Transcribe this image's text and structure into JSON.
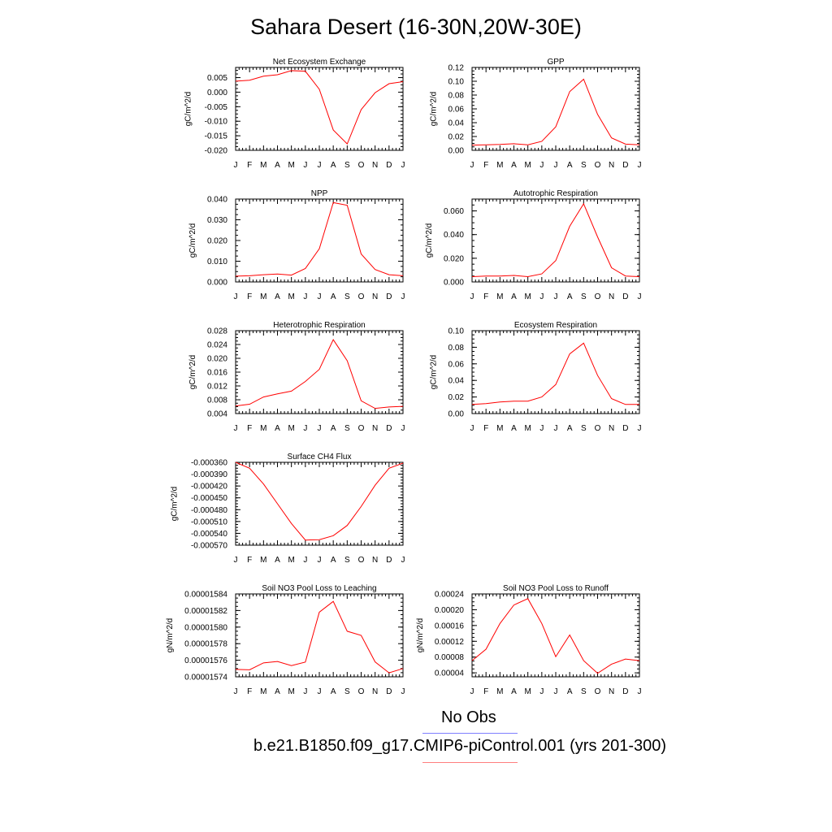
{
  "title": "Sahara Desert (16-30N,20W-30E)",
  "legend": {
    "obs_label": "No Obs",
    "obs_color": "#7f7fff",
    "model_label": "b.e21.B1850.f09_g17.CMIP6-piControl.001 (yrs 201-300)",
    "model_color": "#ff7f7f"
  },
  "chart_data": [
    {
      "type": "line",
      "title": "Net Ecosystem Exchange",
      "ylabel": "gC/m^2/d",
      "x": [
        "J",
        "F",
        "M",
        "A",
        "M",
        "J",
        "J",
        "A",
        "S",
        "O",
        "N",
        "D",
        "J"
      ],
      "ylim": [
        -0.02,
        0.0085
      ],
      "yticks": [
        "0.005",
        "0.000",
        "-0.005",
        "-0.010",
        "-0.015",
        "-0.020"
      ],
      "ytick_values": [
        0.005,
        0,
        -0.005,
        -0.01,
        -0.015,
        -0.02
      ],
      "series": [
        {
          "color": "#ff0000",
          "values": [
            0.0038,
            0.0041,
            0.0055,
            0.006,
            0.0074,
            0.0072,
            0.001,
            -0.013,
            -0.0178,
            -0.006,
            -0.0002,
            0.0029,
            0.0036
          ]
        }
      ]
    },
    {
      "type": "line",
      "title": "GPP",
      "ylabel": "gC/m^2/d",
      "x": [
        "J",
        "F",
        "M",
        "A",
        "M",
        "J",
        "J",
        "A",
        "S",
        "O",
        "N",
        "D",
        "J"
      ],
      "ylim": [
        0,
        0.12
      ],
      "yticks": [
        "0.12",
        "0.10",
        "0.08",
        "0.06",
        "0.04",
        "0.02",
        "0.00"
      ],
      "ytick_values": [
        0.12,
        0.1,
        0.08,
        0.06,
        0.04,
        0.02,
        0
      ],
      "series": [
        {
          "color": "#ff0000",
          "values": [
            0.0075,
            0.008,
            0.0085,
            0.0095,
            0.008,
            0.013,
            0.034,
            0.085,
            0.103,
            0.052,
            0.018,
            0.009,
            0.008
          ]
        }
      ]
    },
    {
      "type": "line",
      "title": "NPP",
      "ylabel": "gC/m^2/d",
      "x": [
        "J",
        "F",
        "M",
        "A",
        "M",
        "J",
        "J",
        "A",
        "S",
        "O",
        "N",
        "D",
        "J"
      ],
      "ylim": [
        0,
        0.04
      ],
      "yticks": [
        "0.040",
        "0.030",
        "0.020",
        "0.010",
        "0.000"
      ],
      "ytick_values": [
        0.04,
        0.03,
        0.02,
        0.01,
        0
      ],
      "series": [
        {
          "color": "#ff0000",
          "values": [
            0.0028,
            0.003,
            0.0035,
            0.0038,
            0.0033,
            0.0065,
            0.016,
            0.0383,
            0.037,
            0.0135,
            0.006,
            0.0035,
            0.003
          ]
        }
      ]
    },
    {
      "type": "line",
      "title": "Autotrophic Respiration",
      "ylabel": "gC/m^2/d",
      "x": [
        "J",
        "F",
        "M",
        "A",
        "M",
        "J",
        "J",
        "A",
        "S",
        "O",
        "N",
        "D",
        "J"
      ],
      "ylim": [
        0,
        0.07
      ],
      "yticks": [
        "0.060",
        "0.040",
        "0.020",
        "0.000"
      ],
      "ytick_values": [
        0.06,
        0.04,
        0.02,
        0
      ],
      "series": [
        {
          "color": "#ff0000",
          "values": [
            0.0045,
            0.005,
            0.005,
            0.0055,
            0.0045,
            0.0068,
            0.018,
            0.047,
            0.066,
            0.038,
            0.012,
            0.005,
            0.0045
          ]
        }
      ]
    },
    {
      "type": "line",
      "title": "Heterotrophic Respiration",
      "ylabel": "gC/m^2/d",
      "x": [
        "J",
        "F",
        "M",
        "A",
        "M",
        "J",
        "J",
        "A",
        "S",
        "O",
        "N",
        "D",
        "J"
      ],
      "ylim": [
        0.004,
        0.028
      ],
      "yticks": [
        "0.028",
        "0.024",
        "0.020",
        "0.016",
        "0.012",
        "0.008",
        "0.004"
      ],
      "ytick_values": [
        0.028,
        0.024,
        0.02,
        0.016,
        0.012,
        0.008,
        0.004
      ],
      "series": [
        {
          "color": "#ff0000",
          "values": [
            0.0062,
            0.0067,
            0.0088,
            0.0097,
            0.0105,
            0.0133,
            0.0168,
            0.0254,
            0.0193,
            0.0077,
            0.0055,
            0.0059,
            0.0061
          ]
        }
      ]
    },
    {
      "type": "line",
      "title": "Ecosystem Respiration",
      "ylabel": "gC/m^2/d",
      "x": [
        "J",
        "F",
        "M",
        "A",
        "M",
        "J",
        "J",
        "A",
        "S",
        "O",
        "N",
        "D",
        "J"
      ],
      "ylim": [
        0,
        0.1
      ],
      "yticks": [
        "0.10",
        "0.08",
        "0.06",
        "0.04",
        "0.02",
        "0.00"
      ],
      "ytick_values": [
        0.1,
        0.08,
        0.06,
        0.04,
        0.02,
        0
      ],
      "series": [
        {
          "color": "#ff0000",
          "values": [
            0.011,
            0.012,
            0.014,
            0.015,
            0.015,
            0.02,
            0.035,
            0.072,
            0.085,
            0.046,
            0.018,
            0.011,
            0.011
          ]
        }
      ]
    },
    {
      "type": "line",
      "title": "Surface CH4 Flux",
      "ylabel": "gC/m^2/d",
      "x": [
        "J",
        "F",
        "M",
        "A",
        "M",
        "J",
        "J",
        "A",
        "S",
        "O",
        "N",
        "D",
        "J"
      ],
      "ylim": [
        -0.00057,
        -0.00036
      ],
      "yticks": [
        "-0.000360",
        "-0.000390",
        "-0.000420",
        "-0.000450",
        "-0.000480",
        "-0.000510",
        "-0.000540",
        "-0.000570"
      ],
      "ytick_values": [
        -0.00036,
        -0.00039,
        -0.00042,
        -0.00045,
        -0.00048,
        -0.00051,
        -0.00054,
        -0.00057
      ],
      "series": [
        {
          "color": "#ff0000",
          "values": [
            -0.00036,
            -0.000375,
            -0.000415,
            -0.000465,
            -0.000515,
            -0.000557,
            -0.000556,
            -0.000546,
            -0.00052,
            -0.000472,
            -0.000418,
            -0.000375,
            -0.000362
          ]
        }
      ]
    },
    {
      "type": "line",
      "title": "Soil NO3 Pool Loss to Leaching",
      "ylabel": "gN/m^2/d",
      "x": [
        "J",
        "F",
        "M",
        "A",
        "M",
        "J",
        "J",
        "A",
        "S",
        "O",
        "N",
        "D",
        "J"
      ],
      "ylim": [
        1.574e-05,
        1.584e-05
      ],
      "yticks": [
        "0.00001584",
        "0.00001582",
        "0.00001580",
        "0.00001578",
        "0.00001576",
        "0.00001574"
      ],
      "ytick_values": [
        1.584e-05,
        1.582e-05,
        1.58e-05,
        1.578e-05,
        1.576e-05,
        1.574e-05
      ],
      "series": [
        {
          "color": "#ff0000",
          "values": [
            1.5749e-05,
            1.57485e-05,
            1.57568e-05,
            1.57585e-05,
            1.57535e-05,
            1.57578e-05,
            1.5818e-05,
            1.5831e-05,
            1.5795e-05,
            1.579e-05,
            1.5758e-05,
            1.57448e-05,
            1.575e-05
          ]
        }
      ]
    },
    {
      "type": "line",
      "title": "Soil NO3 Pool Loss to Runoff",
      "ylabel": "gN/m^2/d",
      "x": [
        "J",
        "F",
        "M",
        "A",
        "M",
        "J",
        "J",
        "A",
        "S",
        "O",
        "N",
        "D",
        "J"
      ],
      "ylim": [
        3e-05,
        0.00024
      ],
      "yticks": [
        "0.00024",
        "0.00020",
        "0.00016",
        "0.00012",
        "0.00008",
        "0.00004"
      ],
      "ytick_values": [
        0.00024,
        0.0002,
        0.00016,
        0.00012,
        8e-05,
        4e-05
      ],
      "series": [
        {
          "color": "#ff0000",
          "values": [
            7.1e-05,
            0.0001,
            0.000165,
            0.000212,
            0.000228,
            0.000165,
            8.1e-05,
            0.000136,
            7.1e-05,
            3.9e-05,
            6.2e-05,
            7.5e-05,
            7.1e-05
          ]
        }
      ]
    }
  ]
}
